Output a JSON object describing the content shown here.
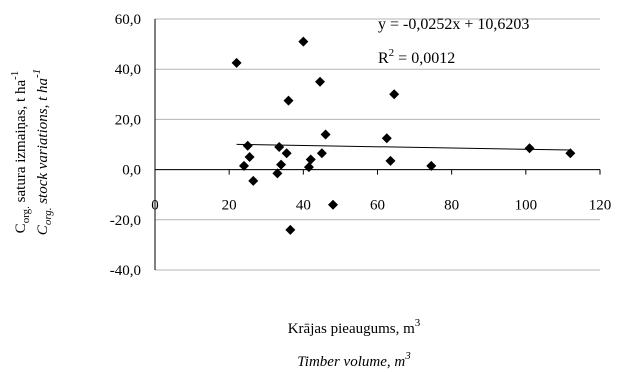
{
  "chart_data": {
    "type": "scatter",
    "xlim": [
      0,
      120
    ],
    "ylim": [
      -40,
      60
    ],
    "x_ticks": [
      "0",
      "20",
      "40",
      "60",
      "80",
      "100",
      "120"
    ],
    "y_ticks": [
      "60,0",
      "40,0",
      "20,0",
      "0,0",
      "-20,0",
      "-40,0"
    ],
    "grid": "horizontal",
    "points": [
      {
        "x": 22,
        "y": 42.5
      },
      {
        "x": 24,
        "y": 1.5
      },
      {
        "x": 25,
        "y": 9.5
      },
      {
        "x": 25.5,
        "y": 5
      },
      {
        "x": 26.5,
        "y": -4.5
      },
      {
        "x": 33,
        "y": -1.5
      },
      {
        "x": 33.5,
        "y": 9
      },
      {
        "x": 34,
        "y": 2
      },
      {
        "x": 35.5,
        "y": 6.5
      },
      {
        "x": 36,
        "y": 27.5
      },
      {
        "x": 36.5,
        "y": -24
      },
      {
        "x": 40,
        "y": 51
      },
      {
        "x": 41.5,
        "y": 1
      },
      {
        "x": 42,
        "y": 4
      },
      {
        "x": 44.5,
        "y": 35
      },
      {
        "x": 45,
        "y": 6.5
      },
      {
        "x": 46,
        "y": 14
      },
      {
        "x": 48,
        "y": -14
      },
      {
        "x": 62.5,
        "y": 12.5
      },
      {
        "x": 63.5,
        "y": 3.5
      },
      {
        "x": 64.5,
        "y": 30
      },
      {
        "x": 74.5,
        "y": 1.5
      },
      {
        "x": 101,
        "y": 8.5
      },
      {
        "x": 112,
        "y": 6.5
      }
    ],
    "trendline": {
      "slope": -0.0252,
      "intercept": 10.6203,
      "x_from": 22,
      "x_to": 112
    },
    "equation": "y = -0,0252x + 10,6203",
    "r2_prefix": "R",
    "r2_sup": "2",
    "r2_value": " = 0,0012",
    "xlabel_lines": [
      {
        "main": "Krājas pieaugums, m",
        "sup": "3"
      },
      {
        "main": "Timber volume, m",
        "sup": "3"
      }
    ],
    "ylabel_lines": [
      {
        "main": "C",
        "sub": "org.",
        "rest": " satura izmaiņas, t ha",
        "sup": "-1"
      },
      {
        "main": "C",
        "sub": "org.",
        "rest": " stock variations, t ha",
        "sup": "-1"
      }
    ]
  }
}
